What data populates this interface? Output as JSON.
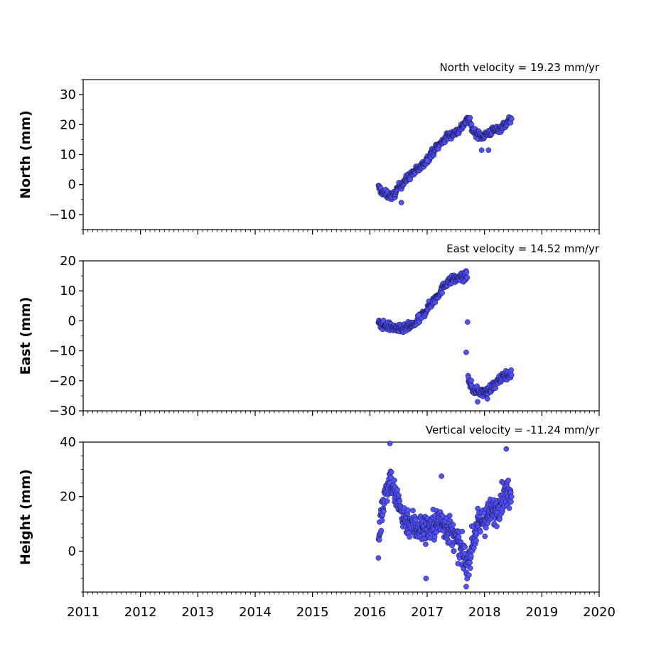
{
  "chart_data": [
    {
      "type": "scatter",
      "title": "North velocity = 19.23 mm/yr",
      "ylabel": "North (mm)",
      "ylim": [
        -15,
        35
      ],
      "yticks": [
        -10,
        0,
        10,
        20,
        30
      ],
      "xlim": [
        2011,
        2020
      ],
      "xticks": [],
      "grid": false,
      "marker_color": "#5050ff",
      "trend_breakpoints": [
        [
          2016.15,
          -1
        ],
        [
          2016.25,
          -3
        ],
        [
          2016.4,
          -4
        ],
        [
          2016.5,
          -1
        ],
        [
          2016.7,
          3
        ],
        [
          2016.9,
          6
        ],
        [
          2017.1,
          11
        ],
        [
          2017.35,
          16
        ],
        [
          2017.55,
          18
        ],
        [
          2017.72,
          22
        ],
        [
          2017.8,
          18
        ],
        [
          2017.95,
          16
        ],
        [
          2018.15,
          18
        ],
        [
          2018.3,
          19
        ],
        [
          2018.47,
          22
        ]
      ],
      "outliers": [
        [
          2016.55,
          -6
        ],
        [
          2017.95,
          11.5
        ],
        [
          2018.07,
          11.5
        ],
        [
          2017.0,
          8
        ]
      ],
      "y_spread": 1.1,
      "n_points": 420
    },
    {
      "type": "scatter",
      "title": "East velocity = 14.52 mm/yr",
      "ylabel": "East (mm)",
      "ylim": [
        -30,
        20
      ],
      "yticks": [
        -30,
        -20,
        -10,
        0,
        10,
        20
      ],
      "xlim": [
        2011,
        2020
      ],
      "xticks": [],
      "grid": false,
      "marker_color": "#5050ff",
      "trend_breakpoints": [
        [
          2016.15,
          -1
        ],
        [
          2016.35,
          -2
        ],
        [
          2016.55,
          -3
        ],
        [
          2016.8,
          -1
        ],
        [
          2017.0,
          4
        ],
        [
          2017.2,
          9
        ],
        [
          2017.35,
          13
        ],
        [
          2017.5,
          14
        ],
        [
          2017.7,
          15
        ],
        [
          2017.71,
          -19
        ],
        [
          2017.8,
          -23
        ],
        [
          2018.0,
          -24
        ],
        [
          2018.2,
          -21
        ],
        [
          2018.35,
          -18
        ],
        [
          2018.47,
          -18
        ]
      ],
      "outliers": [
        [
          2017.68,
          -10.5
        ],
        [
          2017.88,
          -27
        ],
        [
          2016.85,
          2
        ],
        [
          2018.05,
          -26
        ]
      ],
      "y_spread": 1.2,
      "n_points": 420
    },
    {
      "type": "scatter",
      "title": "Vertical velocity = -11.24 mm/yr",
      "ylabel": "Height (mm)",
      "ylim": [
        -15,
        40
      ],
      "yticks": [
        0,
        20,
        40
      ],
      "xlim": [
        2011,
        2020
      ],
      "xticks": [
        2011,
        2012,
        2013,
        2014,
        2015,
        2016,
        2017,
        2018,
        2019,
        2020
      ],
      "grid": false,
      "marker_color": "#5050ff",
      "trend_breakpoints": [
        [
          2016.15,
          5
        ],
        [
          2016.25,
          20
        ],
        [
          2016.35,
          27
        ],
        [
          2016.45,
          20
        ],
        [
          2016.6,
          12
        ],
        [
          2016.8,
          9
        ],
        [
          2017.0,
          8
        ],
        [
          2017.25,
          11
        ],
        [
          2017.45,
          6
        ],
        [
          2017.6,
          0
        ],
        [
          2017.7,
          -5
        ],
        [
          2017.85,
          8
        ],
        [
          2018.0,
          12
        ],
        [
          2018.2,
          15
        ],
        [
          2018.35,
          21
        ],
        [
          2018.47,
          22
        ]
      ],
      "outliers": [
        [
          2016.35,
          39.5
        ],
        [
          2018.38,
          37.5
        ],
        [
          2016.98,
          -10
        ],
        [
          2017.68,
          -13
        ],
        [
          2017.25,
          27.5
        ],
        [
          2016.15,
          -2.5
        ]
      ],
      "y_spread": 4.5,
      "n_points": 520
    }
  ]
}
